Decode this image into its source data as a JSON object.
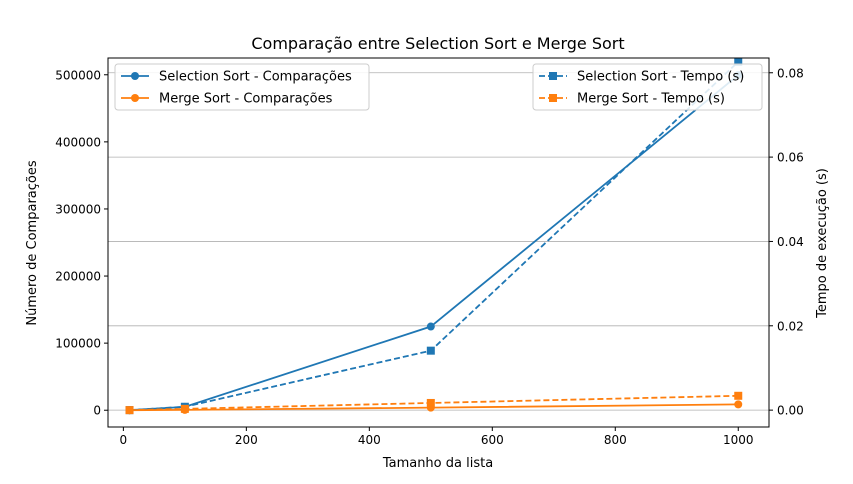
{
  "chart_data": {
    "type": "line",
    "title": "Comparação entre Selection Sort e Merge Sort",
    "xlabel": "Tamanho da lista",
    "ylabel": "Número de Comparações",
    "y2label": "Tempo de execução (s)",
    "xlim": [
      -25,
      1050
    ],
    "ylim": [
      -25000,
      525000
    ],
    "y2lim": [
      -0.004,
      0.0835
    ],
    "x_ticks": [
      0,
      200,
      400,
      600,
      800,
      1000
    ],
    "y_ticks": [
      0,
      100000,
      200000,
      300000,
      400000,
      500000
    ],
    "y2_ticks": [
      0.0,
      0.02,
      0.04,
      0.06,
      0.08
    ],
    "y2_tick_labels": [
      "0.00",
      "0.02",
      "0.04",
      "0.06",
      "0.08"
    ],
    "grid": "horizontal gridlines on secondary axis",
    "x": [
      10,
      100,
      500,
      1000
    ],
    "series": [
      {
        "name": "Selection Sort - Comparações",
        "axis": "left",
        "values": [
          45,
          4950,
          124750,
          499500
        ],
        "color": "#1f77b4",
        "linestyle": "solid",
        "marker": "circle"
      },
      {
        "name": "Merge Sort - Comparações",
        "axis": "left",
        "values": [
          25,
          540,
          3850,
          8700
        ],
        "color": "#ff7f0e",
        "linestyle": "solid",
        "marker": "circle"
      },
      {
        "name": "Selection Sort - Tempo (s)",
        "axis": "right",
        "values": [
          0.0,
          0.0008,
          0.0141,
          0.0826
        ],
        "color": "#1f77b4",
        "linestyle": "dashed",
        "marker": "square"
      },
      {
        "name": "Merge Sort - Tempo (s)",
        "axis": "right",
        "values": [
          0.0,
          0.0003,
          0.0017,
          0.0034
        ],
        "color": "#ff7f0e",
        "linestyle": "dashed",
        "marker": "square"
      }
    ],
    "legends": {
      "left": {
        "position": "upper-left",
        "entries": [
          "Selection Sort - Comparações",
          "Merge Sort - Comparações"
        ]
      },
      "right": {
        "position": "upper-right",
        "entries": [
          "Selection Sort - Tempo (s)",
          "Merge Sort - Tempo (s)"
        ]
      }
    }
  }
}
